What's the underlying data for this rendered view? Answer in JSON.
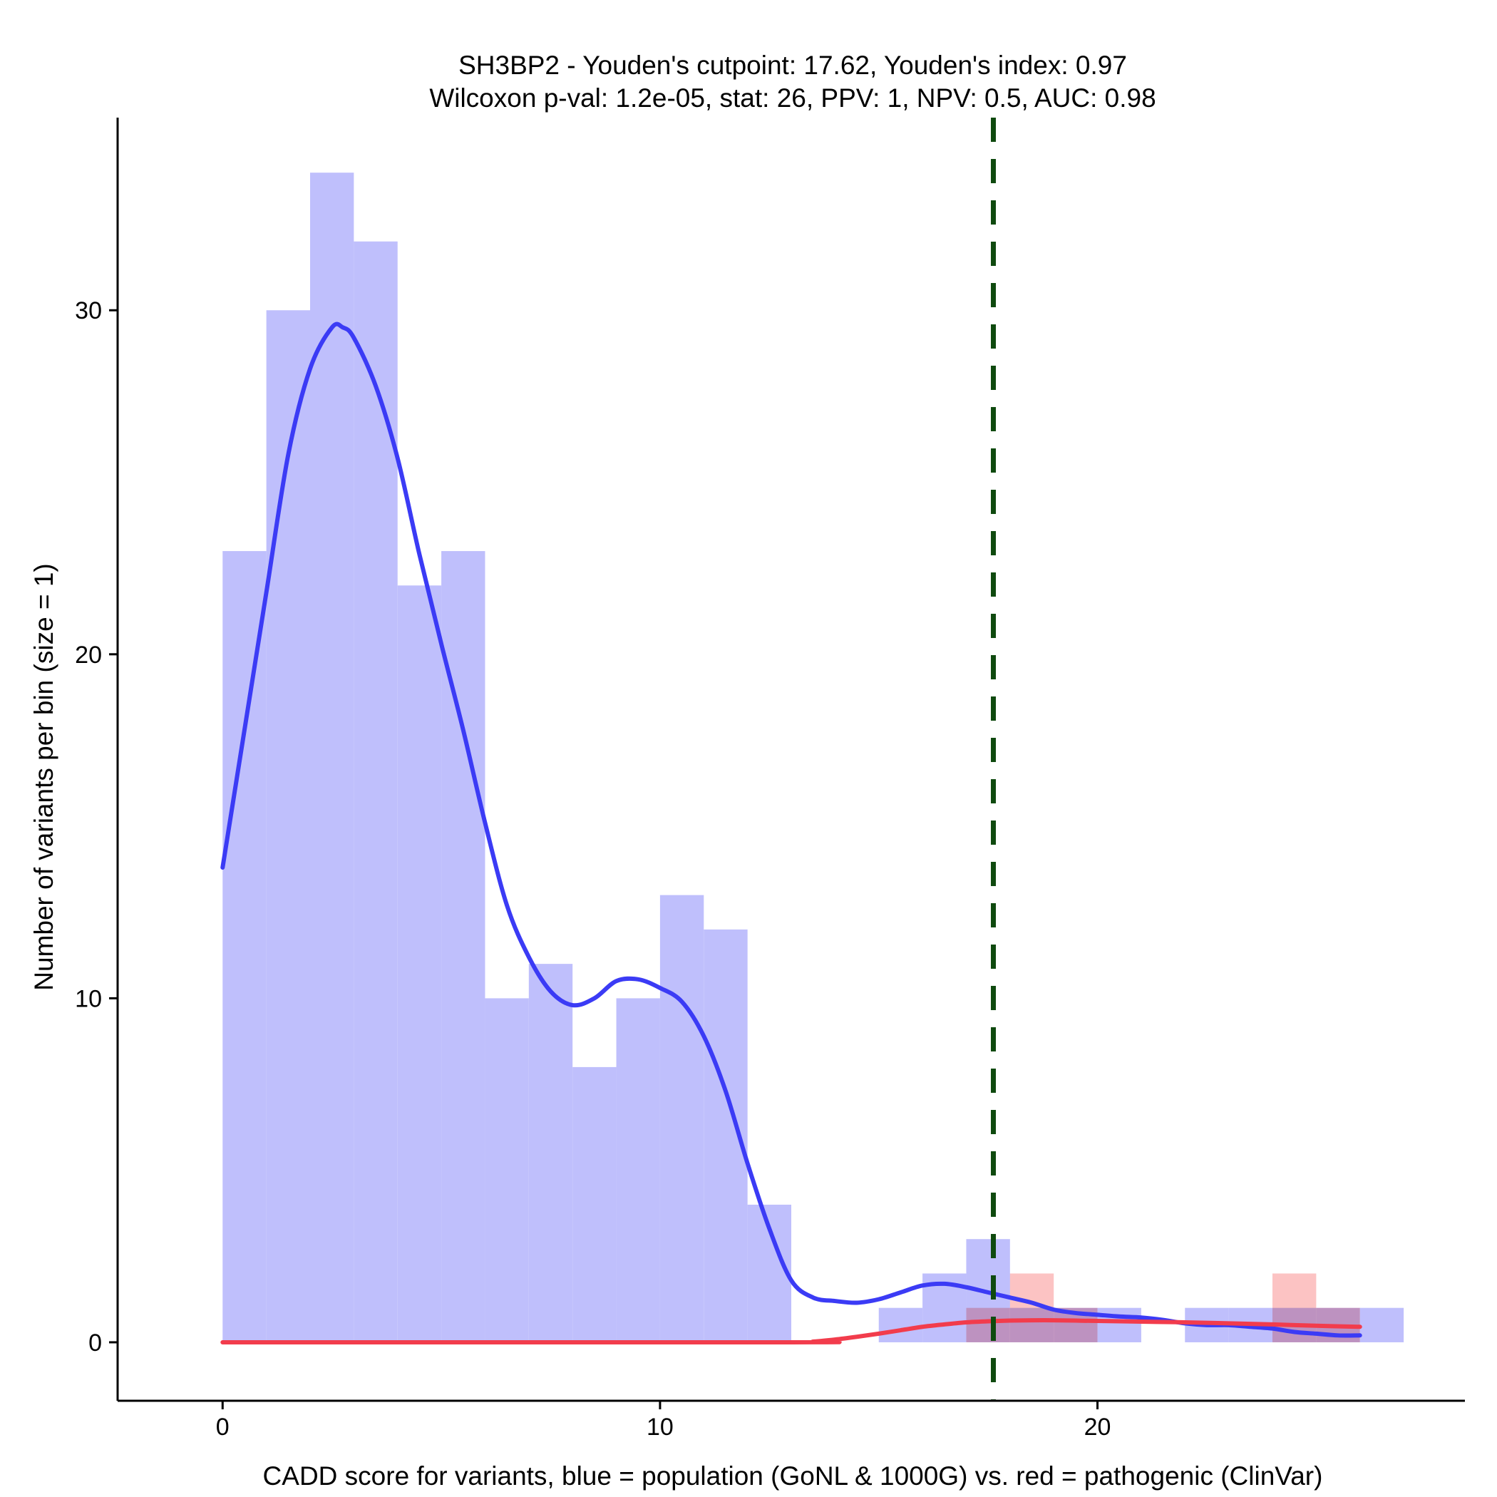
{
  "chart_data": {
    "type": "histogram",
    "title": "SH3BP2 - Youden's cutpoint: 17.62, Youden's index: 0.97",
    "subtitle": "Wilcoxon p-val: 1.2e-05, stat: 26, PPV: 1, NPV: 0.5, AUC: 0.98",
    "xlabel": "CADD score for variants, blue = population (GoNL & 1000G) vs. red = pathogenic (ClinVar)",
    "ylabel": "Number of variants per bin (size = 1)",
    "xlim": [
      -2.4,
      28.4
    ],
    "ylim": [
      -1.7,
      35.6
    ],
    "x_ticks": [
      0,
      10,
      20
    ],
    "y_ticks": [
      0,
      10,
      20,
      30
    ],
    "bin_width": 1,
    "cutpoint": 17.62,
    "series": [
      {
        "name": "population",
        "color": "#bfbffc",
        "bins": [
          {
            "x0": 0,
            "count": 23
          },
          {
            "x0": 1,
            "count": 30
          },
          {
            "x0": 2,
            "count": 34
          },
          {
            "x0": 3,
            "count": 32
          },
          {
            "x0": 4,
            "count": 22
          },
          {
            "x0": 5,
            "count": 23
          },
          {
            "x0": 6,
            "count": 10
          },
          {
            "x0": 7,
            "count": 11
          },
          {
            "x0": 8,
            "count": 8
          },
          {
            "x0": 9,
            "count": 10
          },
          {
            "x0": 10,
            "count": 13
          },
          {
            "x0": 11,
            "count": 12
          },
          {
            "x0": 12,
            "count": 4
          },
          {
            "x0": 13,
            "count": 0
          },
          {
            "x0": 14,
            "count": 0
          },
          {
            "x0": 15,
            "count": 1
          },
          {
            "x0": 16,
            "count": 2
          },
          {
            "x0": 17,
            "count": 3
          },
          {
            "x0": 18,
            "count": 1
          },
          {
            "x0": 19,
            "count": 1
          },
          {
            "x0": 20,
            "count": 1
          },
          {
            "x0": 21,
            "count": 0
          },
          {
            "x0": 22,
            "count": 1
          },
          {
            "x0": 23,
            "count": 1
          },
          {
            "x0": 24,
            "count": 1
          },
          {
            "x0": 25,
            "count": 1
          },
          {
            "x0": 26,
            "count": 1
          }
        ],
        "density_line": {
          "color": "#3b3bf5",
          "x": [
            0,
            0.5,
            1,
            1.5,
            2,
            2.5,
            2.75,
            3,
            3.5,
            4,
            4.5,
            5,
            5.5,
            6,
            6.5,
            7,
            7.5,
            8,
            8.5,
            9,
            9.5,
            10,
            10.5,
            11,
            11.5,
            12,
            12.5,
            13,
            13.5,
            14,
            14.5,
            15,
            15.5,
            16,
            16.5,
            17,
            17.5,
            18,
            18.5,
            19,
            19.5,
            20,
            20.5,
            21,
            21.5,
            22,
            22.5,
            23,
            23.5,
            24,
            24.5,
            25,
            25.5,
            26
          ],
          "y": [
            13.8,
            17.8,
            21.8,
            25.8,
            28.3,
            29.5,
            29.5,
            29.2,
            27.8,
            25.7,
            22.9,
            20.3,
            17.8,
            15.1,
            12.7,
            11.2,
            10.2,
            9.8,
            10.0,
            10.5,
            10.55,
            10.3,
            9.9,
            8.9,
            7.3,
            5.2,
            3.3,
            1.8,
            1.3,
            1.2,
            1.15,
            1.25,
            1.45,
            1.65,
            1.7,
            1.6,
            1.45,
            1.3,
            1.15,
            0.95,
            0.85,
            0.8,
            0.75,
            0.72,
            0.65,
            0.55,
            0.5,
            0.5,
            0.45,
            0.4,
            0.3,
            0.25,
            0.2,
            0.2
          ]
        }
      },
      {
        "name": "pathogenic",
        "color": "#fcc0c0",
        "bins": [
          {
            "x0": 17,
            "count": 1
          },
          {
            "x0": 18,
            "count": 2
          },
          {
            "x0": 19,
            "count": 1
          },
          {
            "x0": 24,
            "count": 2
          },
          {
            "x0": 25,
            "count": 1
          }
        ],
        "density_line": {
          "color": "#f23c4c",
          "x": [
            0,
            13,
            13.5,
            14,
            14.5,
            15,
            15.5,
            16,
            16.5,
            17,
            17.5,
            18,
            18.5,
            19,
            19.5,
            20,
            21,
            22,
            23,
            24,
            25,
            26
          ],
          "y": [
            0,
            0,
            0.02,
            0.08,
            0.16,
            0.25,
            0.35,
            0.45,
            0.52,
            0.58,
            0.61,
            0.63,
            0.64,
            0.64,
            0.63,
            0.62,
            0.6,
            0.58,
            0.55,
            0.52,
            0.48,
            0.45
          ]
        }
      }
    ]
  }
}
